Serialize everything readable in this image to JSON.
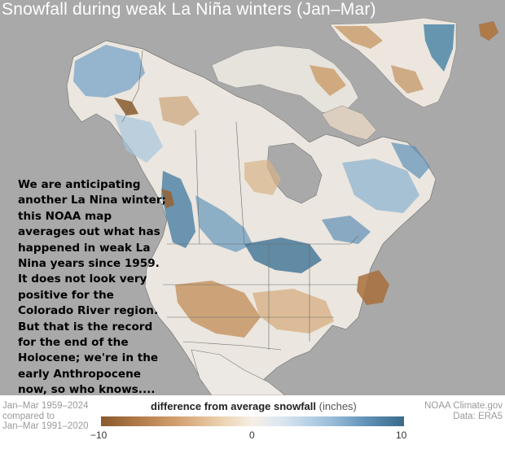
{
  "title": "Snowfall during weak La Niña winters (Jan–Mar)",
  "annotation_lines": [
    "We are anticipating",
    "another La Nina winter;",
    "this NOAA map",
    "averages out what has",
    "happened in weak La",
    "Nina years since 1959.",
    "It does not look very",
    "positive for the",
    "Colorado River region.",
    "But that is the record",
    "for the end of the",
    "Holocene; we're in the",
    "early Anthropocene",
    "now,  so who knows...."
  ],
  "footer": {
    "comparison_lines": [
      "Jan–Mar 1959–2024",
      "compared to",
      "Jan–Mar 1991–2020"
    ],
    "legend_title_bold": "difference from average snowfall",
    "legend_units": "(inches)",
    "tick_min": "−10",
    "tick_mid": "0",
    "tick_max": "10",
    "credit_lines": [
      "NOAA Climate.gov",
      "Data: ERA5"
    ]
  },
  "colors": {
    "background_gray": "#a9a9a9",
    "land_base": "#eae7e2",
    "below_average": "#8a5a2e",
    "above_average": "#3a6a88"
  }
}
